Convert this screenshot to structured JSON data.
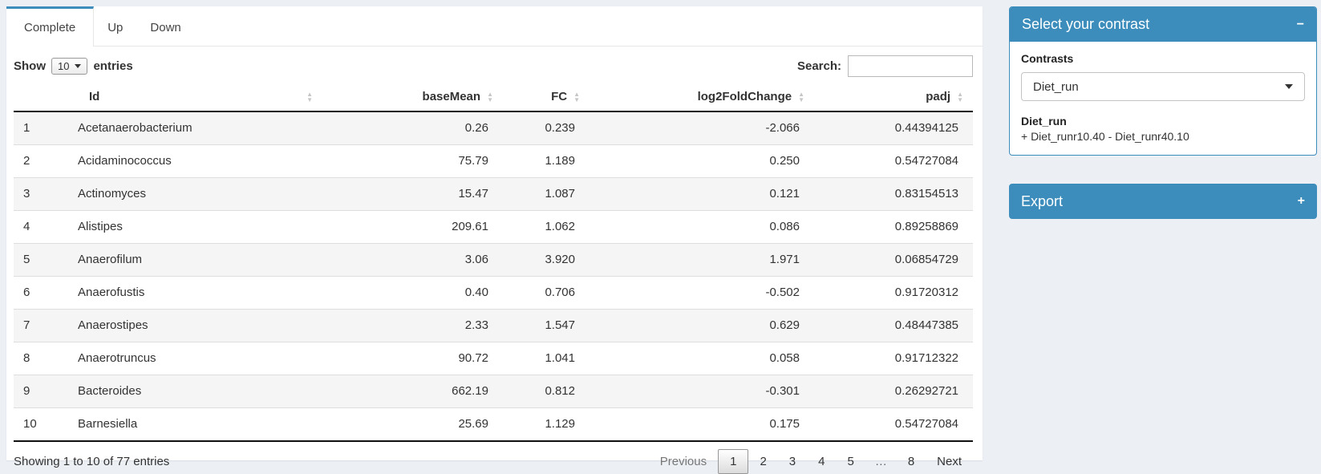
{
  "colors": {
    "primary": "#3c8dbc",
    "page_bg": "#ecf0f5"
  },
  "tabs": [
    {
      "label": "Complete",
      "active": true
    },
    {
      "label": "Up",
      "active": false
    },
    {
      "label": "Down",
      "active": false
    }
  ],
  "table_controls": {
    "show_label": "Show",
    "page_length": "10",
    "entries_label": "entries",
    "search_label": "Search:",
    "search_value": ""
  },
  "table": {
    "columns": [
      {
        "label": "",
        "align": "left",
        "sortable": false
      },
      {
        "label": "Id",
        "align": "left",
        "sortable": true
      },
      {
        "label": "baseMean",
        "align": "right",
        "sortable": true
      },
      {
        "label": "FC",
        "align": "right",
        "sortable": true
      },
      {
        "label": "log2FoldChange",
        "align": "right",
        "sortable": true
      },
      {
        "label": "padj",
        "align": "right",
        "sortable": true
      }
    ],
    "rows": [
      [
        "1",
        "Acetanaerobacterium",
        "0.26",
        "0.239",
        "-2.066",
        "0.44394125"
      ],
      [
        "2",
        "Acidaminococcus",
        "75.79",
        "1.189",
        "0.250",
        "0.54727084"
      ],
      [
        "3",
        "Actinomyces",
        "15.47",
        "1.087",
        "0.121",
        "0.83154513"
      ],
      [
        "4",
        "Alistipes",
        "209.61",
        "1.062",
        "0.086",
        "0.89258869"
      ],
      [
        "5",
        "Anaerofilum",
        "3.06",
        "3.920",
        "1.971",
        "0.06854729"
      ],
      [
        "6",
        "Anaerofustis",
        "0.40",
        "0.706",
        "-0.502",
        "0.91720312"
      ],
      [
        "7",
        "Anaerostipes",
        "2.33",
        "1.547",
        "0.629",
        "0.48447385"
      ],
      [
        "8",
        "Anaerotruncus",
        "90.72",
        "1.041",
        "0.058",
        "0.91712322"
      ],
      [
        "9",
        "Bacteroides",
        "662.19",
        "0.812",
        "-0.301",
        "0.26292721"
      ],
      [
        "10",
        "Barnesiella",
        "25.69",
        "1.129",
        "0.175",
        "0.54727084"
      ]
    ]
  },
  "footer": {
    "info": "Showing 1 to 10 of 77 entries",
    "active_page": "1",
    "pagination": [
      "Previous",
      "1",
      "2",
      "3",
      "4",
      "5",
      "…",
      "8",
      "Next"
    ]
  },
  "sidebar": {
    "contrast_box": {
      "title": "Select your contrast",
      "collapse_icon": "−",
      "contrasts_label": "Contrasts",
      "selected_contrast": "Diet_run",
      "contrast_name": "Diet_run",
      "contrast_formula": "+ Diet_runr10.40 - Diet_runr40.10"
    },
    "export_box": {
      "title": "Export",
      "expand_icon": "+"
    }
  }
}
